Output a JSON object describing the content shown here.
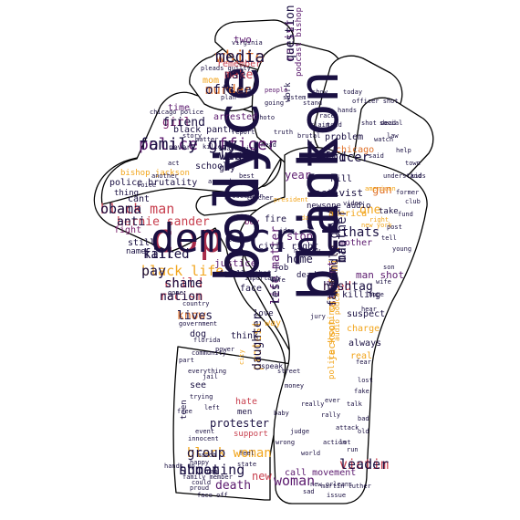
{
  "palette": {
    "dark": "#1a1042",
    "purple": "#5b1a6e",
    "plum": "#7a1f6b",
    "crimson": "#a82c4a",
    "rose": "#c8404f",
    "orange": "#e0722a",
    "gold": "#f2a51c",
    "pale": "#f6d27a"
  },
  "words": [
    {
      "text": "police",
      "color": "dark"
    },
    {
      "text": "black",
      "color": "dark"
    },
    {
      "text": "cop",
      "color": "crimson"
    },
    {
      "text": "police officer",
      "color": "purple"
    },
    {
      "text": "white",
      "color": "orange"
    },
    {
      "text": "black man",
      "color": "rose"
    },
    {
      "text": "bernie sander",
      "color": "rose"
    },
    {
      "text": "shooting",
      "color": "dark"
    },
    {
      "text": "black woman",
      "color": "gold"
    },
    {
      "text": "racism",
      "color": "rose"
    },
    {
      "text": "black life",
      "color": "gold"
    },
    {
      "text": "murder",
      "color": "orange"
    },
    {
      "text": "make",
      "color": "rose"
    },
    {
      "text": "racist",
      "color": "purple"
    },
    {
      "text": "officer",
      "color": "dark"
    },
    {
      "text": "want",
      "color": "dark"
    },
    {
      "text": "girl",
      "color": "plum"
    },
    {
      "text": "killed",
      "color": "dark"
    },
    {
      "text": "child",
      "color": "rose"
    },
    {
      "text": "know",
      "color": "orange"
    },
    {
      "text": "life matter",
      "color": "purple"
    },
    {
      "text": "protest",
      "color": "gold"
    },
    {
      "text": "student",
      "color": "purple"
    },
    {
      "text": "man",
      "color": "dark"
    },
    {
      "text": "need",
      "color": "rose"
    },
    {
      "text": "family",
      "color": "gold"
    },
    {
      "text": "victim",
      "color": "rose"
    },
    {
      "text": "woman",
      "color": "purple"
    },
    {
      "text": "death",
      "color": "purple"
    },
    {
      "text": "new",
      "color": "rose"
    },
    {
      "text": "protester",
      "color": "dark"
    },
    {
      "text": "thats",
      "color": "dark"
    },
    {
      "text": "one",
      "color": "gold"
    },
    {
      "text": "year",
      "color": "purple"
    },
    {
      "text": "gun",
      "color": "orange"
    },
    {
      "text": "stop",
      "color": "purple"
    },
    {
      "text": "home",
      "color": "dark"
    },
    {
      "text": "fire",
      "color": "dark"
    },
    {
      "text": "activist",
      "color": "dark"
    },
    {
      "text": "civil right",
      "color": "dark"
    },
    {
      "text": "justice",
      "color": "purple"
    },
    {
      "text": "boy",
      "color": "plum"
    },
    {
      "text": "mother",
      "color": "purple"
    },
    {
      "text": "america",
      "color": "gold"
    },
    {
      "text": "kill",
      "color": "dark"
    },
    {
      "text": "man shot",
      "color": "purple"
    },
    {
      "text": "killing",
      "color": "dark"
    },
    {
      "text": "suspect",
      "color": "dark"
    },
    {
      "text": "always",
      "color": "dark"
    },
    {
      "text": "charge",
      "color": "gold"
    },
    {
      "text": "real",
      "color": "gold"
    },
    {
      "text": "jackson call",
      "color": "gold"
    },
    {
      "text": "police shooting",
      "color": "gold"
    },
    {
      "text": "call movement",
      "color": "purple"
    },
    {
      "text": "problem",
      "color": "dark"
    },
    {
      "text": "chicago",
      "color": "orange"
    },
    {
      "text": "police brutality",
      "color": "dark"
    },
    {
      "text": "bishop jackson",
      "color": "gold"
    },
    {
      "text": "black panther",
      "color": "dark"
    },
    {
      "text": "arrested",
      "color": "purple"
    },
    {
      "text": "school",
      "color": "dark"
    },
    {
      "text": "time",
      "color": "purple"
    },
    {
      "text": "guy",
      "color": "dark"
    },
    {
      "text": "thing",
      "color": "dark"
    },
    {
      "text": "cant",
      "color": "dark"
    },
    {
      "text": "fight",
      "color": "plum"
    },
    {
      "text": "face",
      "color": "dark"
    },
    {
      "text": "job",
      "color": "dark"
    },
    {
      "text": "dead",
      "color": "dark"
    },
    {
      "text": "love",
      "color": "dark"
    },
    {
      "text": "way",
      "color": "gold"
    },
    {
      "text": "think",
      "color": "dark"
    },
    {
      "text": "dog",
      "color": "dark"
    },
    {
      "text": "see",
      "color": "dark"
    },
    {
      "text": "hate",
      "color": "rose"
    },
    {
      "text": "men",
      "color": "dark"
    },
    {
      "text": "teen",
      "color": "dark"
    },
    {
      "text": "support",
      "color": "rose"
    },
    {
      "text": "still",
      "color": "dark"
    },
    {
      "text": "name",
      "color": "dark"
    },
    {
      "text": "two",
      "color": "purple"
    },
    {
      "text": "remember",
      "color": "rose"
    },
    {
      "text": "mom",
      "color": "gold"
    },
    {
      "text": "work",
      "color": "dark"
    },
    {
      "text": "podcast bishop",
      "color": "purple"
    },
    {
      "text": "newsone audio",
      "color": "dark"
    },
    {
      "text": "take",
      "color": "dark"
    },
    {
      "text": "fatally shot",
      "color": "dark"
    },
    {
      "text": "audio podcast",
      "color": "gold"
    },
    {
      "text": "story",
      "color": "dark"
    },
    {
      "text": "never",
      "color": "dark"
    },
    {
      "text": "black girl",
      "color": "dark"
    },
    {
      "text": "country",
      "color": "dark"
    },
    {
      "text": "government",
      "color": "dark"
    },
    {
      "text": "trying",
      "color": "dark"
    },
    {
      "text": "innocent",
      "color": "dark"
    },
    {
      "text": "family member",
      "color": "dark"
    },
    {
      "text": "street",
      "color": "dark"
    },
    {
      "text": "city",
      "color": "gold"
    },
    {
      "text": "race",
      "color": "dark"
    },
    {
      "text": "people",
      "color": "purple"
    },
    {
      "text": "system",
      "color": "dark"
    },
    {
      "text": "report",
      "color": "dark"
    },
    {
      "text": "understand",
      "color": "dark"
    },
    {
      "text": "video",
      "color": "dark"
    },
    {
      "text": "right",
      "color": "gold"
    },
    {
      "text": "new york",
      "color": "gold"
    },
    {
      "text": "going",
      "color": "dark"
    },
    {
      "text": "told",
      "color": "dark"
    },
    {
      "text": "florida",
      "color": "dark"
    },
    {
      "text": "speak",
      "color": "dark"
    },
    {
      "text": "president",
      "color": "gold"
    },
    {
      "text": "teacher",
      "color": "dark"
    },
    {
      "text": "prosecutor",
      "color": "dark"
    },
    {
      "text": "martin luther",
      "color": "dark"
    },
    {
      "text": "proud",
      "color": "dark"
    },
    {
      "text": "happy",
      "color": "dark"
    },
    {
      "text": "virginia",
      "color": "dark"
    },
    {
      "text": "pleads guilty",
      "color": "dark"
    },
    {
      "text": "chicago police",
      "color": "dark"
    },
    {
      "text": "new orleans",
      "color": "dark"
    },
    {
      "text": "could",
      "color": "dark"
    },
    {
      "text": "american",
      "color": "gold"
    },
    {
      "text": "former",
      "color": "dark"
    },
    {
      "text": "fear",
      "color": "dark"
    },
    {
      "text": "day",
      "color": "gold"
    },
    {
      "text": "act",
      "color": "dark"
    },
    {
      "text": "power",
      "color": "dark"
    },
    {
      "text": "community",
      "color": "dark"
    },
    {
      "text": "history",
      "color": "dark"
    },
    {
      "text": "trump",
      "color": "dark"
    },
    {
      "text": "life",
      "color": "dark"
    },
    {
      "text": "show",
      "color": "dark"
    },
    {
      "text": "stand",
      "color": "dark"
    },
    {
      "text": "plan",
      "color": "dark"
    },
    {
      "text": "feel",
      "color": "dark"
    },
    {
      "text": "state",
      "color": "dark"
    },
    {
      "text": "free",
      "color": "dark"
    },
    {
      "text": "idea",
      "color": "dark"
    },
    {
      "text": "said",
      "color": "dark"
    },
    {
      "text": "help",
      "color": "dark"
    },
    {
      "text": "watch",
      "color": "dark"
    },
    {
      "text": "part",
      "color": "dark"
    },
    {
      "text": "everything",
      "color": "dark"
    },
    {
      "text": "important",
      "color": "dark"
    },
    {
      "text": "jury",
      "color": "dark"
    },
    {
      "text": "attack",
      "color": "dark"
    },
    {
      "text": "action",
      "color": "dark"
    },
    {
      "text": "money",
      "color": "dark"
    },
    {
      "text": "really",
      "color": "dark"
    },
    {
      "text": "baby",
      "color": "dark"
    },
    {
      "text": "judge",
      "color": "dark"
    },
    {
      "text": "wrong",
      "color": "dark"
    },
    {
      "text": "rally",
      "color": "dark"
    },
    {
      "text": "ever",
      "color": "dark"
    },
    {
      "text": "world",
      "color": "dark"
    },
    {
      "text": "talk",
      "color": "dark"
    },
    {
      "text": "lost",
      "color": "dark"
    },
    {
      "text": "fake",
      "color": "dark"
    },
    {
      "text": "bad",
      "color": "dark"
    },
    {
      "text": "old",
      "color": "dark"
    },
    {
      "text": "lot",
      "color": "dark"
    },
    {
      "text": "run",
      "color": "dark"
    },
    {
      "text": "sad",
      "color": "dark"
    },
    {
      "text": "issue",
      "color": "dark"
    },
    {
      "text": "become",
      "color": "dark"
    },
    {
      "text": "best",
      "color": "dark"
    },
    {
      "text": "around",
      "color": "dark"
    },
    {
      "text": "another",
      "color": "dark"
    },
    {
      "text": "voice",
      "color": "dark"
    },
    {
      "text": "matter",
      "color": "dark"
    },
    {
      "text": "killer",
      "color": "dark"
    },
    {
      "text": "truth",
      "color": "dark"
    },
    {
      "text": "head",
      "color": "dark"
    },
    {
      "text": "photo",
      "color": "dark"
    },
    {
      "text": "brutal",
      "color": "dark"
    },
    {
      "text": "claim",
      "color": "dark"
    },
    {
      "text": "today",
      "color": "dark"
    },
    {
      "text": "officer shot",
      "color": "dark"
    },
    {
      "text": "hands",
      "color": "dark"
    },
    {
      "text": "shot dead",
      "color": "dark"
    },
    {
      "text": "social",
      "color": "dark"
    },
    {
      "text": "law",
      "color": "dark"
    },
    {
      "text": "town",
      "color": "dark"
    },
    {
      "text": "kids",
      "color": "dark"
    },
    {
      "text": "young",
      "color": "dark"
    },
    {
      "text": "son",
      "color": "dark"
    },
    {
      "text": "wife",
      "color": "dark"
    },
    {
      "text": "hope",
      "color": "dark"
    },
    {
      "text": "hear",
      "color": "dark"
    },
    {
      "text": "tell",
      "color": "dark"
    },
    {
      "text": "post",
      "color": "dark"
    },
    {
      "text": "fund",
      "color": "dark"
    },
    {
      "text": "club",
      "color": "dark"
    },
    {
      "text": "jail",
      "color": "dark"
    },
    {
      "text": "left",
      "color": "dark"
    },
    {
      "text": "event",
      "color": "dark"
    },
    {
      "text": "march",
      "color": "dark"
    },
    {
      "text": "rap",
      "color": "dark"
    },
    {
      "text": "face off",
      "color": "dark"
    },
    {
      "text": "hands up",
      "color": "dark"
    },
    {
      "text": "gone",
      "color": "dark"
    },
    {
      "text": "body",
      "color": "dark"
    },
    {
      "text": "clinton",
      "color": "dark"
    },
    {
      "text": "democrat",
      "color": "dark"
    },
    {
      "text": "family guy",
      "color": "dark"
    },
    {
      "text": "media",
      "color": "dark"
    },
    {
      "text": "obama",
      "color": "dark"
    },
    {
      "text": "anti",
      "color": "dark"
    },
    {
      "text": "human",
      "color": "dark"
    },
    {
      "text": "group",
      "color": "dark"
    },
    {
      "text": "nation",
      "color": "dark"
    },
    {
      "text": "pay",
      "color": "dark"
    },
    {
      "text": "office",
      "color": "dark"
    },
    {
      "text": "use",
      "color": "dark"
    },
    {
      "text": "question",
      "color": "dark"
    },
    {
      "text": "kind",
      "color": "dark"
    },
    {
      "text": "light",
      "color": "dark"
    },
    {
      "text": "friend",
      "color": "dark"
    },
    {
      "text": "fair",
      "color": "dark"
    },
    {
      "text": "shame",
      "color": "dark"
    },
    {
      "text": "lives",
      "color": "dark"
    },
    {
      "text": "rest",
      "color": "dark"
    },
    {
      "text": "daughter",
      "color": "dark"
    },
    {
      "text": "father",
      "color": "dark"
    },
    {
      "text": "brother",
      "color": "dark"
    },
    {
      "text": "hashtag",
      "color": "dark"
    },
    {
      "text": "handle guy",
      "color": "dark"
    },
    {
      "text": "leader",
      "color": "dark"
    }
  ]
}
